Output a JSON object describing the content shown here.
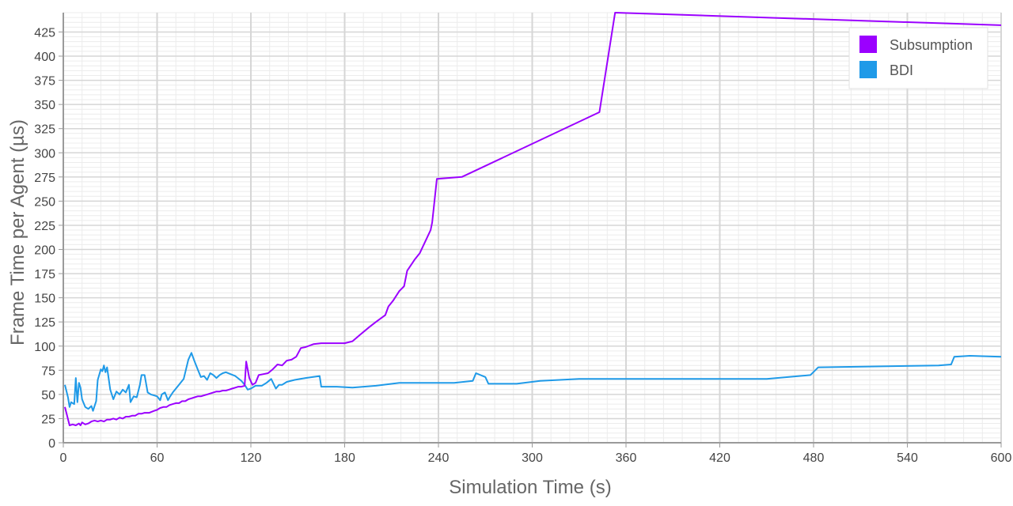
{
  "chart_data": {
    "type": "line",
    "xlabel": "Simulation Time (s)",
    "ylabel": "Frame Time per Agent (µs)",
    "xlim": [
      0,
      600
    ],
    "ylim": [
      0,
      445
    ],
    "x_major_ticks": [
      0,
      60,
      120,
      180,
      240,
      300,
      360,
      420,
      480,
      540,
      600
    ],
    "x_minor_step": 12,
    "y_major_ticks": [
      0,
      25,
      50,
      75,
      100,
      125,
      150,
      175,
      200,
      225,
      250,
      275,
      300,
      325,
      350,
      375,
      400,
      425
    ],
    "y_minor_step": 5,
    "grid": true,
    "legend_position": "top-right",
    "colors": {
      "major_grid": "#d6d6d6",
      "minor_grid": "#ececec",
      "axis": "#9a9a9a"
    },
    "series": [
      {
        "name": "Subsumption",
        "color": "#9b00ff",
        "points": [
          [
            1,
            37
          ],
          [
            4,
            18
          ],
          [
            6,
            19
          ],
          [
            8,
            18
          ],
          [
            10,
            20
          ],
          [
            11,
            18
          ],
          [
            12,
            21
          ],
          [
            14,
            19
          ],
          [
            16,
            20
          ],
          [
            18,
            22
          ],
          [
            20,
            23
          ],
          [
            22,
            22
          ],
          [
            24,
            23
          ],
          [
            26,
            22
          ],
          [
            28,
            24
          ],
          [
            30,
            24
          ],
          [
            32,
            25
          ],
          [
            34,
            24
          ],
          [
            36,
            26
          ],
          [
            38,
            25
          ],
          [
            40,
            27
          ],
          [
            42,
            27
          ],
          [
            44,
            28
          ],
          [
            46,
            28
          ],
          [
            48,
            30
          ],
          [
            50,
            30
          ],
          [
            52,
            31
          ],
          [
            55,
            31
          ],
          [
            58,
            33
          ],
          [
            60,
            34
          ],
          [
            62,
            36
          ],
          [
            64,
            37
          ],
          [
            66,
            37
          ],
          [
            68,
            39
          ],
          [
            70,
            40
          ],
          [
            72,
            41
          ],
          [
            74,
            41
          ],
          [
            76,
            43
          ],
          [
            78,
            43
          ],
          [
            80,
            45
          ],
          [
            82,
            46
          ],
          [
            84,
            47
          ],
          [
            86,
            48
          ],
          [
            88,
            48
          ],
          [
            90,
            49
          ],
          [
            92,
            50
          ],
          [
            94,
            51
          ],
          [
            96,
            52
          ],
          [
            98,
            53
          ],
          [
            100,
            53
          ],
          [
            102,
            54
          ],
          [
            104,
            54
          ],
          [
            106,
            55
          ],
          [
            108,
            56
          ],
          [
            110,
            57
          ],
          [
            112,
            58
          ],
          [
            114,
            58
          ],
          [
            116,
            59
          ],
          [
            117,
            84
          ],
          [
            119,
            67
          ],
          [
            121,
            60
          ],
          [
            123,
            62
          ],
          [
            125,
            70
          ],
          [
            128,
            71
          ],
          [
            131,
            72
          ],
          [
            134,
            76
          ],
          [
            137,
            81
          ],
          [
            140,
            80
          ],
          [
            143,
            85
          ],
          [
            146,
            86
          ],
          [
            149,
            89
          ],
          [
            152,
            98
          ],
          [
            155,
            99
          ],
          [
            160,
            102
          ],
          [
            165,
            103
          ],
          [
            170,
            103
          ],
          [
            180,
            103
          ],
          [
            185,
            105
          ],
          [
            190,
            112
          ],
          [
            196,
            120
          ],
          [
            200,
            125
          ],
          [
            206,
            132
          ],
          [
            208,
            141
          ],
          [
            211,
            147
          ],
          [
            215,
            157
          ],
          [
            218,
            162
          ],
          [
            220,
            178
          ],
          [
            225,
            190
          ],
          [
            228,
            196
          ],
          [
            235,
            220
          ],
          [
            236,
            228
          ],
          [
            239,
            273
          ],
          [
            255,
            275
          ],
          [
            343,
            342
          ],
          [
            353,
            445
          ],
          [
            600,
            432
          ]
        ]
      },
      {
        "name": "BDI",
        "color": "#1f9ae8",
        "points": [
          [
            1,
            60
          ],
          [
            3,
            47
          ],
          [
            4,
            37
          ],
          [
            5,
            42
          ],
          [
            7,
            40
          ],
          [
            8,
            67
          ],
          [
            9,
            42
          ],
          [
            10,
            62
          ],
          [
            11,
            57
          ],
          [
            12,
            45
          ],
          [
            14,
            37
          ],
          [
            16,
            35
          ],
          [
            18,
            38
          ],
          [
            19,
            33
          ],
          [
            21,
            43
          ],
          [
            22,
            65
          ],
          [
            24,
            76
          ],
          [
            25,
            74
          ],
          [
            26,
            80
          ],
          [
            27,
            73
          ],
          [
            28,
            78
          ],
          [
            30,
            55
          ],
          [
            32,
            45
          ],
          [
            34,
            53
          ],
          [
            36,
            50
          ],
          [
            38,
            55
          ],
          [
            40,
            52
          ],
          [
            42,
            60
          ],
          [
            43,
            42
          ],
          [
            45,
            48
          ],
          [
            47,
            47
          ],
          [
            49,
            60
          ],
          [
            50,
            70
          ],
          [
            52,
            70
          ],
          [
            54,
            52
          ],
          [
            56,
            50
          ],
          [
            58,
            49
          ],
          [
            60,
            48
          ],
          [
            62,
            44
          ],
          [
            63,
            50
          ],
          [
            65,
            52
          ],
          [
            67,
            44
          ],
          [
            68,
            47
          ],
          [
            70,
            52
          ],
          [
            73,
            58
          ],
          [
            77,
            66
          ],
          [
            80,
            86
          ],
          [
            82,
            93
          ],
          [
            84,
            84
          ],
          [
            86,
            76
          ],
          [
            88,
            68
          ],
          [
            90,
            69
          ],
          [
            92,
            65
          ],
          [
            94,
            72
          ],
          [
            96,
            70
          ],
          [
            98,
            67
          ],
          [
            100,
            70
          ],
          [
            102,
            72
          ],
          [
            104,
            73
          ],
          [
            107,
            71
          ],
          [
            110,
            69
          ],
          [
            114,
            64
          ],
          [
            116,
            60
          ],
          [
            118,
            55
          ],
          [
            120,
            56
          ],
          [
            123,
            59
          ],
          [
            127,
            59
          ],
          [
            130,
            62
          ],
          [
            133,
            66
          ],
          [
            136,
            56
          ],
          [
            138,
            60
          ],
          [
            140,
            60
          ],
          [
            143,
            63
          ],
          [
            148,
            65
          ],
          [
            155,
            67
          ],
          [
            164,
            69
          ],
          [
            165,
            58
          ],
          [
            175,
            58
          ],
          [
            185,
            57
          ],
          [
            200,
            59
          ],
          [
            215,
            62
          ],
          [
            250,
            62
          ],
          [
            262,
            64
          ],
          [
            264,
            72
          ],
          [
            270,
            68
          ],
          [
            272,
            61
          ],
          [
            290,
            61
          ],
          [
            305,
            64
          ],
          [
            330,
            66
          ],
          [
            380,
            66
          ],
          [
            450,
            66
          ],
          [
            478,
            70
          ],
          [
            483,
            78
          ],
          [
            560,
            80
          ],
          [
            568,
            81
          ],
          [
            570,
            89
          ],
          [
            580,
            90
          ],
          [
            600,
            89
          ]
        ]
      }
    ]
  }
}
